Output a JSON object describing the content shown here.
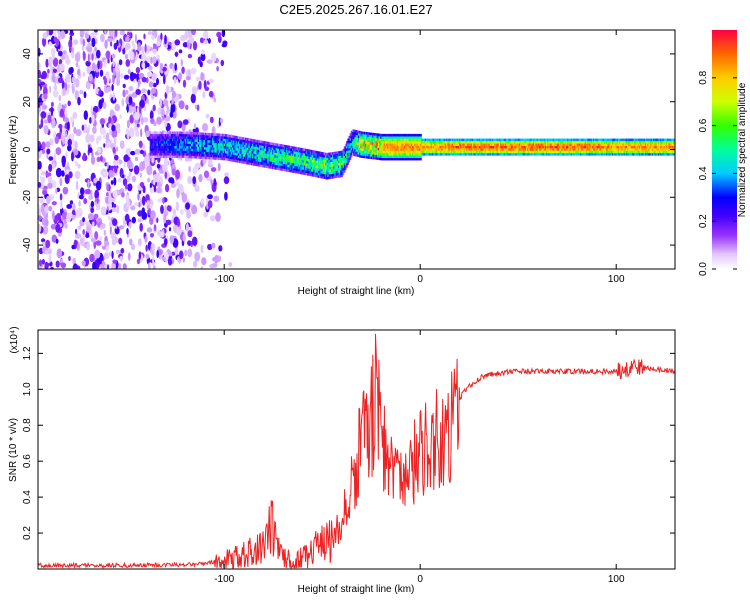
{
  "title": "C2E5.2025.267.16.01.E27",
  "chart_data": [
    {
      "type": "heatmap",
      "title": "C2E5.2025.267.16.01.E27",
      "xlabel": "Height of straight line (km)",
      "ylabel": "Frequency (Hz)",
      "xlim": [
        -195,
        130
      ],
      "ylim": [
        -50,
        50
      ],
      "x_ticks": [
        -100,
        0,
        100
      ],
      "x_tick_labels": [
        "-100",
        "0",
        "100"
      ],
      "y_ticks": [
        -40,
        -20,
        0,
        20,
        40
      ],
      "y_tick_labels": [
        "-40",
        "-20",
        "0",
        "20",
        "40"
      ],
      "colorbar": {
        "label": "Normalized spectral amplitude",
        "range": [
          0,
          1
        ],
        "ticks": [
          0.0,
          0.2,
          0.4,
          0.6,
          0.8
        ],
        "tick_labels": [
          "0.0",
          "0.2",
          "0.4",
          "0.6",
          "0.8"
        ],
        "colors": [
          "#ffffff",
          "#cc99ff",
          "#7b00ff",
          "#0000ff",
          "#00ffff",
          "#00ff00",
          "#ffff00",
          "#ff8800",
          "#ff0000"
        ]
      },
      "ridge": {
        "description": "dominant spectral line",
        "x": [
          -138,
          -120,
          -100,
          -80,
          -60,
          -48,
          -40,
          -35,
          -30,
          -20,
          -10,
          0,
          20,
          40,
          60,
          80,
          100,
          130
        ],
        "freq": [
          2,
          2,
          1,
          -2,
          -5,
          -7,
          -6,
          3,
          2,
          1,
          1,
          1,
          1,
          1,
          1,
          1,
          1,
          1
        ],
        "amplitude": [
          0.3,
          0.45,
          0.5,
          0.55,
          0.6,
          0.7,
          0.6,
          0.5,
          0.85,
          0.9,
          0.9,
          0.9,
          0.95,
          0.95,
          0.95,
          0.95,
          0.9,
          0.9
        ]
      },
      "noise_region": {
        "x_from": -195,
        "x_to": -105,
        "amplitude": 0.15
      }
    },
    {
      "type": "line",
      "xlabel": "Height of straight line (km)",
      "ylabel": "SNR (10 * v/v)",
      "y_exponent_label": "(x10⁴)",
      "xlim": [
        -195,
        130
      ],
      "ylim": [
        0,
        1.33
      ],
      "x_ticks": [
        -100,
        0,
        100
      ],
      "x_tick_labels": [
        "-100",
        "0",
        "100"
      ],
      "y_ticks": [
        0.2,
        0.4,
        0.6,
        0.8,
        1.0,
        1.2
      ],
      "y_tick_labels": [
        "0.2",
        "0.4",
        "0.6",
        "0.8",
        "1.0",
        "1.2"
      ],
      "color": "#ee2222",
      "series": [
        {
          "name": "SNR",
          "x": [
            -195,
            -150,
            -120,
            -110,
            -100,
            -90,
            -85,
            -80,
            -76,
            -72,
            -65,
            -60,
            -55,
            -50,
            -45,
            -40,
            -35,
            -30,
            -25,
            -22,
            -20,
            -15,
            -10,
            -5,
            0,
            5,
            10,
            15,
            20,
            25,
            30,
            35,
            40,
            50,
            60,
            70,
            80,
            90,
            100,
            105,
            110,
            120,
            130
          ],
          "y": [
            0.02,
            0.02,
            0.025,
            0.03,
            0.05,
            0.08,
            0.1,
            0.14,
            0.25,
            0.1,
            0.04,
            0.06,
            0.1,
            0.14,
            0.16,
            0.3,
            0.5,
            0.75,
            0.9,
            1.05,
            0.85,
            0.6,
            0.55,
            0.6,
            0.7,
            0.75,
            0.8,
            0.85,
            0.95,
            1.02,
            1.06,
            1.08,
            1.09,
            1.1,
            1.1,
            1.1,
            1.1,
            1.1,
            1.1,
            1.12,
            1.13,
            1.11,
            1.1
          ]
        }
      ]
    }
  ]
}
